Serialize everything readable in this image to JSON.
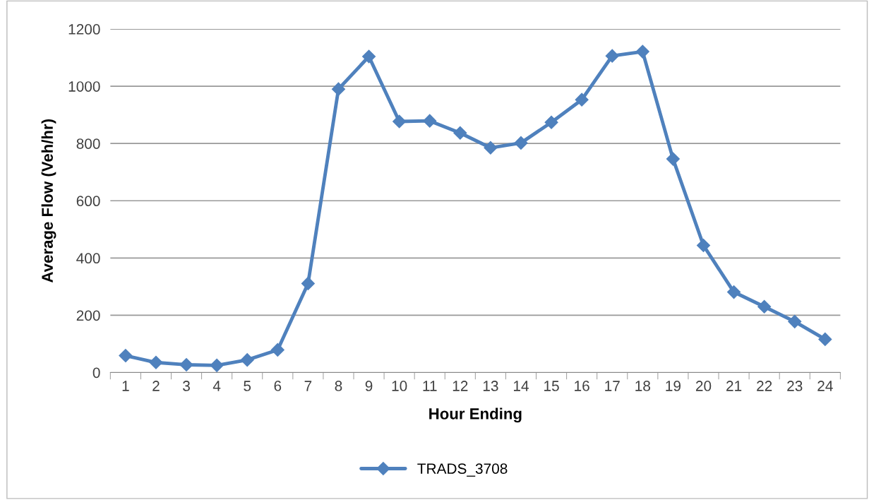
{
  "chart_data": {
    "type": "line",
    "xlabel": "Hour Ending",
    "ylabel": "Average Flow (Veh/hr)",
    "categories": [
      "1",
      "2",
      "3",
      "4",
      "5",
      "6",
      "7",
      "8",
      "9",
      "10",
      "11",
      "12",
      "13",
      "14",
      "15",
      "16",
      "17",
      "18",
      "19",
      "20",
      "21",
      "22",
      "23",
      "24"
    ],
    "series": [
      {
        "name": "TRADS_3708",
        "color": "#4f81bd",
        "values": [
          59,
          35,
          27,
          25,
          44,
          79,
          311,
          990,
          1104,
          877,
          879,
          837,
          785,
          802,
          874,
          953,
          1106,
          1121,
          746,
          444,
          281,
          230,
          178,
          116
        ]
      }
    ],
    "ylim": [
      0,
      1200
    ],
    "yticks": [
      0,
      200,
      400,
      600,
      800,
      1000,
      1200
    ],
    "grid": "y",
    "legend": "bottom",
    "marker": "diamond",
    "line_style": "solid"
  }
}
